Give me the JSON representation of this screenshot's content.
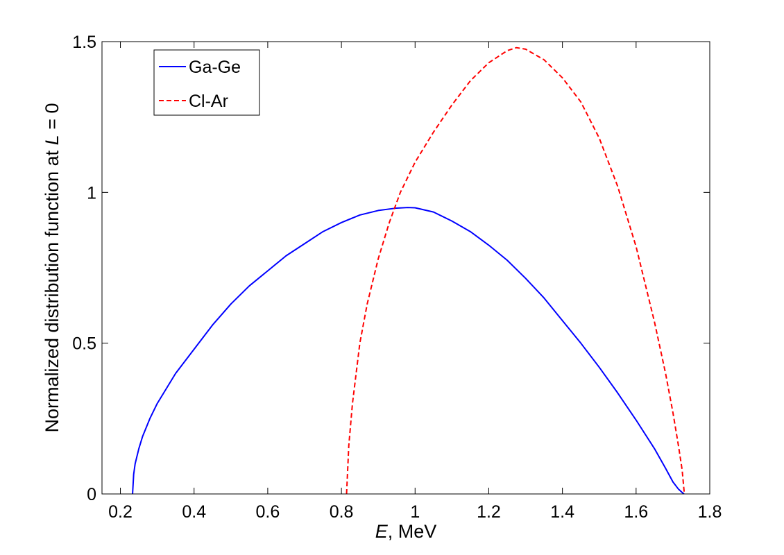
{
  "chart_data": {
    "type": "line",
    "xlabel_italic": "E",
    "xlabel_rest": ", MeV",
    "ylabel_prefix": "Normalized distribution function at ",
    "ylabel_italic": "L",
    "ylabel_suffix": " = 0",
    "xlim": [
      0.15,
      1.8
    ],
    "ylim": [
      0,
      1.5
    ],
    "xticks": [
      0.2,
      0.4,
      0.6,
      0.8,
      1,
      1.2,
      1.4,
      1.6,
      1.8
    ],
    "xtick_labels": [
      "0.2",
      "0.4",
      "0.6",
      "0.8",
      "1",
      "1.2",
      "1.4",
      "1.6",
      "1.8"
    ],
    "yticks": [
      0,
      0.5,
      1,
      1.5
    ],
    "ytick_labels": [
      "0",
      "0.5",
      "1",
      "1.5"
    ],
    "grid": false,
    "legend_position": "top-left",
    "series": [
      {
        "name": "Ga-Ge",
        "color": "#0000ff",
        "style": "solid",
        "x": [
          0.233,
          0.236,
          0.24,
          0.25,
          0.26,
          0.28,
          0.3,
          0.35,
          0.4,
          0.45,
          0.5,
          0.55,
          0.6,
          0.65,
          0.7,
          0.75,
          0.8,
          0.85,
          0.9,
          0.95,
          0.98,
          1.0,
          1.05,
          1.1,
          1.15,
          1.2,
          1.25,
          1.3,
          1.35,
          1.4,
          1.45,
          1.5,
          1.55,
          1.6,
          1.65,
          1.68,
          1.7,
          1.715,
          1.725,
          1.73
        ],
        "y": [
          0.0,
          0.065,
          0.1,
          0.15,
          0.19,
          0.25,
          0.3,
          0.4,
          0.48,
          0.56,
          0.63,
          0.69,
          0.74,
          0.79,
          0.83,
          0.87,
          0.9,
          0.925,
          0.94,
          0.948,
          0.95,
          0.949,
          0.935,
          0.905,
          0.87,
          0.825,
          0.775,
          0.715,
          0.65,
          0.575,
          0.5,
          0.42,
          0.335,
          0.245,
          0.15,
          0.085,
          0.04,
          0.016,
          0.005,
          0.0
        ]
      },
      {
        "name": "Cl-Ar",
        "color": "#ff0000",
        "style": "dashed",
        "x": [
          0.814,
          0.82,
          0.83,
          0.85,
          0.87,
          0.9,
          0.93,
          0.96,
          1.0,
          1.05,
          1.1,
          1.15,
          1.2,
          1.25,
          1.275,
          1.3,
          1.35,
          1.4,
          1.45,
          1.5,
          1.55,
          1.6,
          1.65,
          1.68,
          1.7,
          1.715,
          1.725,
          1.731
        ],
        "y": [
          0.0,
          0.16,
          0.3,
          0.5,
          0.63,
          0.78,
          0.9,
          1.0,
          1.1,
          1.2,
          1.29,
          1.37,
          1.43,
          1.47,
          1.48,
          1.475,
          1.44,
          1.38,
          1.3,
          1.18,
          1.02,
          0.82,
          0.57,
          0.4,
          0.27,
          0.16,
          0.08,
          0.0
        ]
      }
    ]
  }
}
